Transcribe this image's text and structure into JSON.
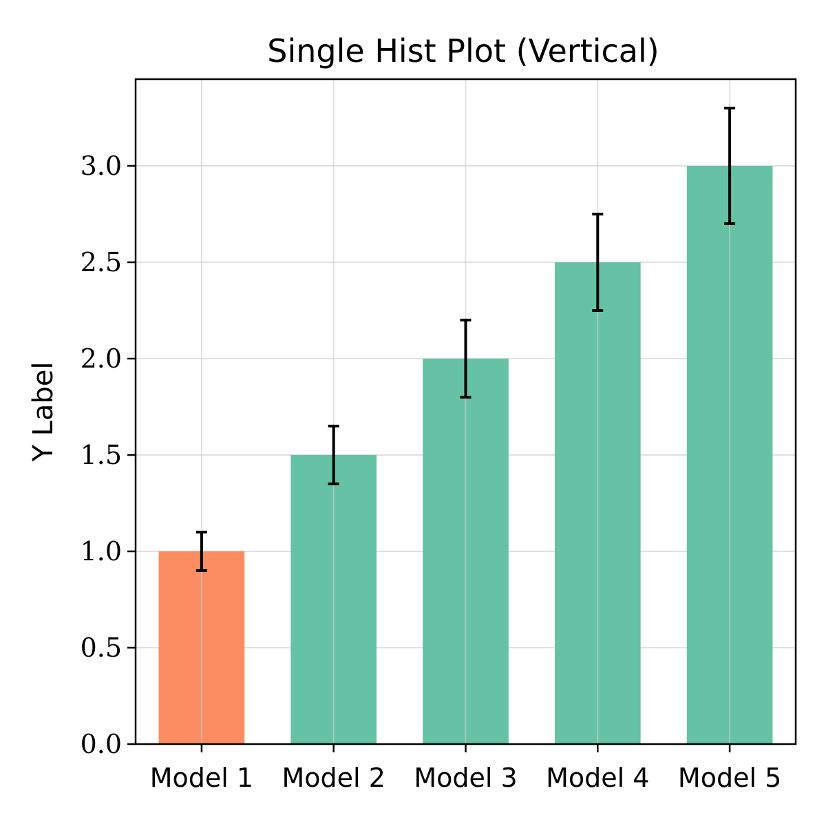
{
  "chart_data": {
    "type": "bar",
    "title": "Single Hist Plot (Vertical)",
    "xlabel": "",
    "ylabel": "Y Label",
    "categories": [
      "Model 1",
      "Model 2",
      "Model 3",
      "Model 4",
      "Model 5"
    ],
    "values": [
      1.0,
      1.5,
      2.0,
      2.5,
      3.0
    ],
    "errors": [
      0.1,
      0.15,
      0.2,
      0.25,
      0.3
    ],
    "bar_colors": [
      "#fc8d62",
      "#66c2a5",
      "#66c2a5",
      "#66c2a5",
      "#66c2a5"
    ],
    "ylim": [
      0,
      3.45
    ],
    "yticks": [
      "0.0",
      "0.5",
      "1.0",
      "1.5",
      "2.0",
      "2.5",
      "3.0"
    ],
    "grid": true,
    "legend": "none"
  }
}
